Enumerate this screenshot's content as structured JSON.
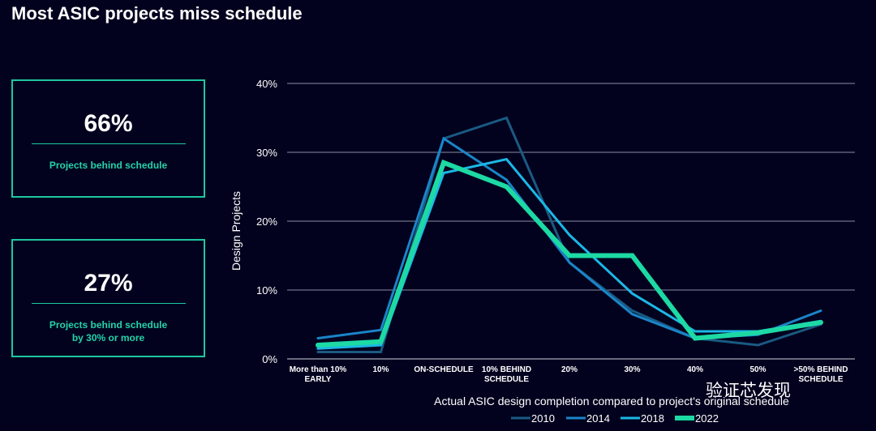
{
  "title": "Most ASIC projects miss schedule",
  "stats": [
    {
      "value": "66%",
      "label": "Projects behind schedule"
    },
    {
      "value": "27%",
      "label_line1": "Projects behind schedule",
      "label_line2": "by 30% or more"
    }
  ],
  "watermark": "验证芯发现",
  "colors": {
    "background": "#02021f",
    "accent": "#1fc79f",
    "s2010": "#1a5a82",
    "s2014": "#1a85c8",
    "s2018": "#1bb8e6",
    "s2022": "#1dd9a4"
  },
  "chart_data": {
    "type": "line",
    "xlabel": "Actual ASIC design completion compared to project's original schedule",
    "ylabel": "Design Projects",
    "ylim": [
      0,
      40
    ],
    "yticks": [
      0,
      10,
      20,
      30,
      40
    ],
    "ytick_labels": [
      "0%",
      "10%",
      "20%",
      "30%",
      "40%"
    ],
    "categories": [
      [
        "More than 10%",
        "EARLY"
      ],
      [
        "10%"
      ],
      [
        "ON-SCHEDULE"
      ],
      [
        "10% BEHIND",
        "SCHEDULE"
      ],
      [
        "20%"
      ],
      [
        "30%"
      ],
      [
        "40%"
      ],
      [
        "50%"
      ],
      [
        ">50% BEHIND",
        "SCHEDULE"
      ]
    ],
    "grid": true,
    "legend_position": "bottom",
    "series": [
      {
        "name": "2010",
        "values": [
          1,
          1,
          32,
          35,
          14,
          7,
          3,
          2,
          5
        ],
        "width": 3
      },
      {
        "name": "2014",
        "values": [
          3,
          4.2,
          32,
          26,
          14,
          6.5,
          3,
          3.5,
          7
        ],
        "width": 3
      },
      {
        "name": "2018",
        "values": [
          1.5,
          2,
          27,
          29,
          18,
          9.5,
          4,
          4,
          5.5
        ],
        "width": 3
      },
      {
        "name": "2022",
        "values": [
          2,
          2.5,
          28.5,
          25,
          15,
          15,
          3,
          3.8,
          5.3
        ],
        "width": 6
      }
    ]
  }
}
